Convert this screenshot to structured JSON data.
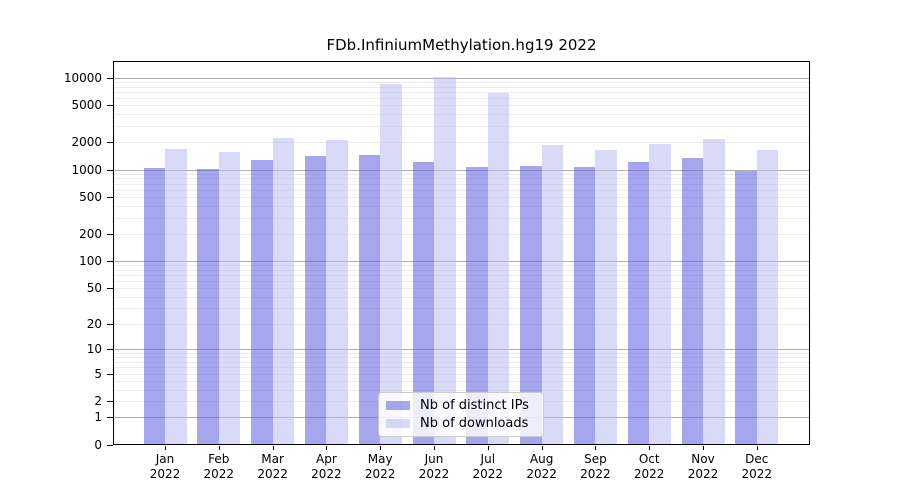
{
  "chart_data": {
    "type": "bar",
    "title": "FDb.InfiniumMethylation.hg19 2022",
    "categories": [
      "Jan 2022",
      "Feb 2022",
      "Mar 2022",
      "Apr 2022",
      "May 2022",
      "Jun 2022",
      "Jul 2022",
      "Aug 2022",
      "Sep 2022",
      "Oct 2022",
      "Nov 2022",
      "Dec 2022"
    ],
    "series": [
      {
        "name": "Nb of distinct IPs",
        "color": "#a4a4ee",
        "fill_rgba": "rgba(92,92,224,0.55)",
        "values": [
          1050,
          1010,
          1270,
          1410,
          1450,
          1210,
          1060,
          1100,
          1060,
          1200,
          1340,
          965
        ]
      },
      {
        "name": "Nb of downloads",
        "color": "#d8d8f8",
        "fill_rgba": "rgba(186,186,243,0.55)",
        "values": [
          1680,
          1550,
          2190,
          2100,
          8600,
          10100,
          6800,
          1850,
          1640,
          1900,
          2150,
          1640
        ]
      }
    ],
    "yscale": "log1p",
    "y_ticks": [
      0,
      1,
      2,
      5,
      10,
      20,
      50,
      100,
      200,
      500,
      1000,
      2000,
      5000,
      10000
    ],
    "ylim_top": 15000,
    "grid": "on",
    "gridline_major_color": "#b0b0b0",
    "gridline_minor_color": "#ececec",
    "legend_position": "lower center"
  }
}
